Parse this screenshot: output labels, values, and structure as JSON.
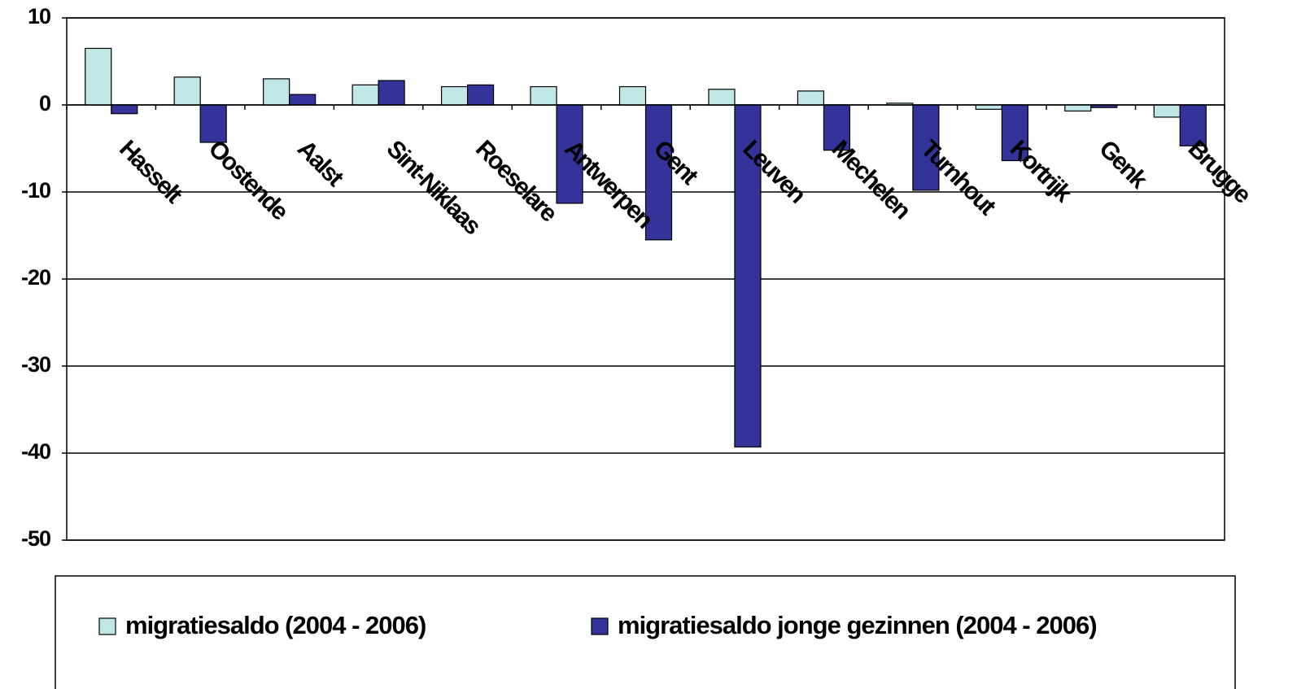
{
  "chart_data": {
    "type": "bar",
    "categories": [
      "Hasselt",
      "Oostende",
      "Aalst",
      "Sint-Niklaas",
      "Roeselare",
      "Antwerpen",
      "Gent",
      "Leuven",
      "Mechelen",
      "Turnhout",
      "Kortrijk",
      "Genk",
      "Brugge"
    ],
    "series": [
      {
        "name": "migratiesaldo (2004 - 2006)",
        "color": "#c0e6e6",
        "values": [
          6.5,
          3.2,
          3.0,
          2.3,
          2.1,
          2.1,
          2.1,
          1.8,
          1.6,
          0.2,
          -0.5,
          -0.7,
          -1.4
        ]
      },
      {
        "name": "migratiesaldo jonge gezinnen (2004 - 2006)",
        "color": "#333399",
        "values": [
          -1.0,
          -4.3,
          1.2,
          2.8,
          2.3,
          -11.3,
          -15.5,
          -39.3,
          -5.2,
          -9.8,
          -6.4,
          -0.3,
          -4.7
        ]
      }
    ],
    "ylim": [
      -50,
      10
    ],
    "yticks": [
      -50,
      -40,
      -30,
      -20,
      -10,
      0,
      10
    ],
    "grid": true
  }
}
